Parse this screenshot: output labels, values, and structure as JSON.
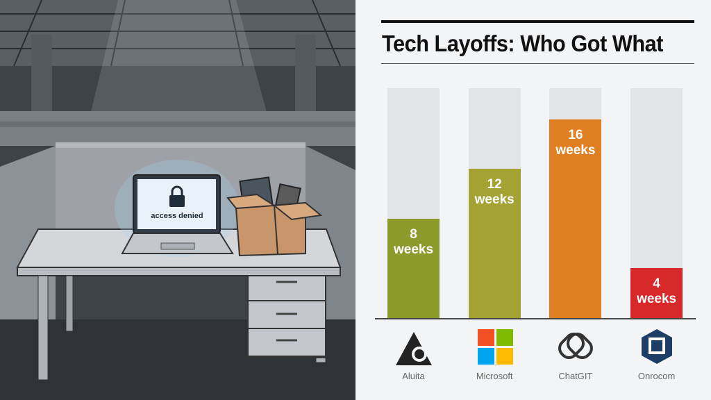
{
  "illustration": {
    "laptop_text": "access denied"
  },
  "chart_data": {
    "type": "bar",
    "title": "Tech Layoffs: Who Got What",
    "categories": [
      "Aluita",
      "Microsoft",
      "ChatGIT",
      "Onrocom"
    ],
    "values": [
      8,
      12,
      16,
      4
    ],
    "value_labels": [
      "8 weeks",
      "12 weeks",
      "16 weeks",
      "4 weeks"
    ],
    "colors": [
      "#8c9a2c",
      "#a4a232",
      "#e07f22",
      "#d7282a"
    ],
    "ylim": [
      0,
      18.5
    ]
  }
}
